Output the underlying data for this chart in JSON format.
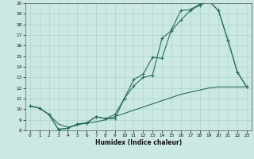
{
  "xlabel": "Humidex (Indice chaleur)",
  "xlim": [
    -0.5,
    23.5
  ],
  "ylim": [
    8,
    20
  ],
  "xticks": [
    0,
    1,
    2,
    3,
    4,
    5,
    6,
    7,
    8,
    9,
    10,
    11,
    12,
    13,
    14,
    15,
    16,
    17,
    18,
    19,
    20,
    21,
    22,
    23
  ],
  "yticks": [
    8,
    9,
    10,
    11,
    12,
    13,
    14,
    15,
    16,
    17,
    18,
    19,
    20
  ],
  "bg_color": "#cce8e4",
  "line_color": "#2a6b5e",
  "grid_color": "#aad4cc",
  "line1_x": [
    0,
    1,
    2,
    3,
    4,
    5,
    6,
    7,
    8,
    9,
    10,
    11,
    12,
    13,
    14,
    15,
    16,
    17,
    18,
    19,
    20,
    21,
    22,
    23
  ],
  "line1_y": [
    10.3,
    10.1,
    9.5,
    8.1,
    8.2,
    8.6,
    8.7,
    9.3,
    9.1,
    9.1,
    11.0,
    12.2,
    13.0,
    13.2,
    16.7,
    17.4,
    18.4,
    19.3,
    19.8,
    20.2,
    19.3,
    16.5,
    13.5,
    12.1
  ],
  "line2_x": [
    0,
    1,
    2,
    3,
    4,
    5,
    6,
    7,
    8,
    9,
    10,
    11,
    12,
    13,
    14,
    15,
    16,
    17,
    18,
    19,
    20,
    21,
    22,
    23
  ],
  "line2_y": [
    10.3,
    10.1,
    9.5,
    8.1,
    8.2,
    8.6,
    8.7,
    9.3,
    9.1,
    9.5,
    11.0,
    12.8,
    13.3,
    14.9,
    14.8,
    17.5,
    19.3,
    19.4,
    19.9,
    20.2,
    19.3,
    16.5,
    13.5,
    12.1
  ],
  "line3_x": [
    0,
    1,
    2,
    3,
    4,
    5,
    6,
    7,
    8,
    9,
    10,
    11,
    12,
    13,
    14,
    15,
    16,
    17,
    18,
    19,
    20,
    21,
    22,
    23
  ],
  "line3_y": [
    10.3,
    10.1,
    9.5,
    8.6,
    8.3,
    8.5,
    8.7,
    8.8,
    9.0,
    9.3,
    9.6,
    9.9,
    10.2,
    10.5,
    10.8,
    11.1,
    11.4,
    11.6,
    11.8,
    12.0,
    12.1,
    12.1,
    12.1,
    12.1
  ]
}
